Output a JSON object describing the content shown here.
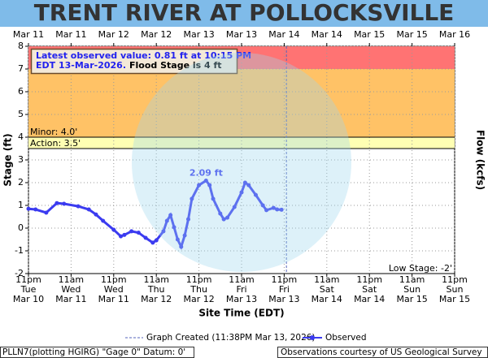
{
  "chart_data": {
    "type": "line",
    "title": "TRENT RIVER AT POLLOCKSVILLE",
    "y_label": "Stage (ft)",
    "y2_label": "Flow (kcfs)",
    "x_label": "Site Time (EDT)",
    "info": [
      "Latest observed value: 0.81 ft at 10:15 PM",
      "EDT 13-Mar-2026.",
      "Flood Stage is 4 ft"
    ],
    "peak_label": "2.09 ft",
    "created_label": "Graph Created (11:38PM Mar 13, 2026)",
    "created_time": "2026-03-13T23:38",
    "footer_left": "PLLN7(plotting HGIRG) \"Gage 0\" Datum: 0'",
    "footer_right": "Observations courtesy of US Geological Survey",
    "xlim": [
      "2026-03-10T23:00",
      "2026-03-15T23:00"
    ],
    "ylim": [
      -2,
      8
    ],
    "yticks": [
      8,
      7,
      6,
      5,
      4,
      3,
      2,
      1,
      0,
      -1,
      -2
    ],
    "grid": true,
    "xticks": [
      {
        "value": "2026-03-10T23:00",
        "label": [
          "11pm",
          "Tue",
          "Mar 10"
        ]
      },
      {
        "value": "2026-03-11T11:00",
        "label": [
          "11am",
          "Wed",
          "Mar 11"
        ]
      },
      {
        "value": "2026-03-11T23:00",
        "label": [
          "11pm",
          "Wed",
          "Mar 11"
        ]
      },
      {
        "value": "2026-03-12T11:00",
        "label": [
          "11am",
          "Thu",
          "Mar 12"
        ]
      },
      {
        "value": "2026-03-12T23:00",
        "label": [
          "11pm",
          "Thu",
          "Mar 12"
        ]
      },
      {
        "value": "2026-03-13T11:00",
        "label": [
          "11am",
          "Fri",
          "Mar 13"
        ]
      },
      {
        "value": "2026-03-13T23:00",
        "label": [
          "11pm",
          "Fri",
          "Mar 13"
        ]
      },
      {
        "value": "2026-03-14T11:00",
        "label": [
          "11am",
          "Sat",
          "Mar 14"
        ]
      },
      {
        "value": "2026-03-14T23:00",
        "label": [
          "11pm",
          "Sat",
          "Mar 14"
        ]
      },
      {
        "value": "2026-03-15T11:00",
        "label": [
          "11am",
          "Sun",
          "Mar 15"
        ]
      },
      {
        "value": "2026-03-15T23:00",
        "label": [
          "11pm",
          "Sun",
          "Mar 15"
        ]
      }
    ],
    "x2ticks": [
      {
        "value": "2026-03-10T23:00",
        "label": "Mar 11"
      },
      {
        "value": "2026-03-11T11:00",
        "label": "Mar 11"
      },
      {
        "value": "2026-03-11T23:00",
        "label": "Mar 12"
      },
      {
        "value": "2026-03-12T11:00",
        "label": "Mar 12"
      },
      {
        "value": "2026-03-12T23:00",
        "label": "Mar 13"
      },
      {
        "value": "2026-03-13T11:00",
        "label": "Mar 13"
      },
      {
        "value": "2026-03-13T23:00",
        "label": "Mar 14"
      },
      {
        "value": "2026-03-14T11:00",
        "label": "Mar 14"
      },
      {
        "value": "2026-03-14T23:00",
        "label": "Mar 15"
      },
      {
        "value": "2026-03-15T11:00",
        "label": "Mar 15"
      },
      {
        "value": "2026-03-15T23:00",
        "label": "Mar 16"
      }
    ],
    "bands": [
      {
        "from": 7,
        "to": 8,
        "color": "#ff7373"
      },
      {
        "from": 4,
        "to": 7,
        "color": "#ffc266"
      },
      {
        "from": 3.5,
        "to": 4,
        "color": "#ffffb3"
      }
    ],
    "thresholds": [
      {
        "label": "Minor: 4.0'",
        "value": 4,
        "side": "left"
      },
      {
        "label": "Action: 3.5'",
        "value": 3.5,
        "side": "left"
      },
      {
        "label": "Low Stage: -2'",
        "value": -2,
        "side": "right"
      }
    ],
    "x": [
      "2026-03-10T23:00",
      "2026-03-11T01:00",
      "2026-03-11T04:00",
      "2026-03-11T07:00",
      "2026-03-11T09:00",
      "2026-03-11T13:00",
      "2026-03-11T16:00",
      "2026-03-11T18:00",
      "2026-03-11T20:00",
      "2026-03-11T23:00",
      "2026-03-12T01:00",
      "2026-03-12T02:00",
      "2026-03-12T04:00",
      "2026-03-12T06:00",
      "2026-03-12T08:00",
      "2026-03-12T10:00",
      "2026-03-12T11:00",
      "2026-03-12T13:00",
      "2026-03-12T14:00",
      "2026-03-12T15:00",
      "2026-03-12T16:00",
      "2026-03-12T17:00",
      "2026-03-12T18:00",
      "2026-03-12T19:00",
      "2026-03-12T20:00",
      "2026-03-12T21:00",
      "2026-03-12T23:00",
      "2026-03-13T01:00",
      "2026-03-13T02:00",
      "2026-03-13T03:00",
      "2026-03-13T05:00",
      "2026-03-13T06:00",
      "2026-03-13T07:00",
      "2026-03-13T09:00",
      "2026-03-13T11:00",
      "2026-03-13T12:00",
      "2026-03-13T13:00",
      "2026-03-13T15:00",
      "2026-03-13T17:00",
      "2026-03-13T18:00",
      "2026-03-13T20:00",
      "2026-03-13T21:00",
      "2026-03-13T22:15"
    ],
    "series": [
      {
        "name": "Observed",
        "color": "#3b3bf0",
        "values": [
          0.85,
          0.82,
          0.68,
          1.1,
          1.07,
          0.96,
          0.82,
          0.6,
          0.32,
          -0.07,
          -0.36,
          -0.3,
          -0.14,
          -0.2,
          -0.43,
          -0.64,
          -0.54,
          -0.14,
          0.32,
          0.57,
          0.04,
          -0.5,
          -0.82,
          -0.32,
          0.39,
          1.29,
          1.89,
          2.09,
          1.89,
          1.29,
          0.64,
          0.39,
          0.46,
          0.93,
          1.57,
          2.0,
          1.89,
          1.46,
          1.0,
          0.79,
          0.89,
          0.82,
          0.81
        ]
      }
    ]
  }
}
